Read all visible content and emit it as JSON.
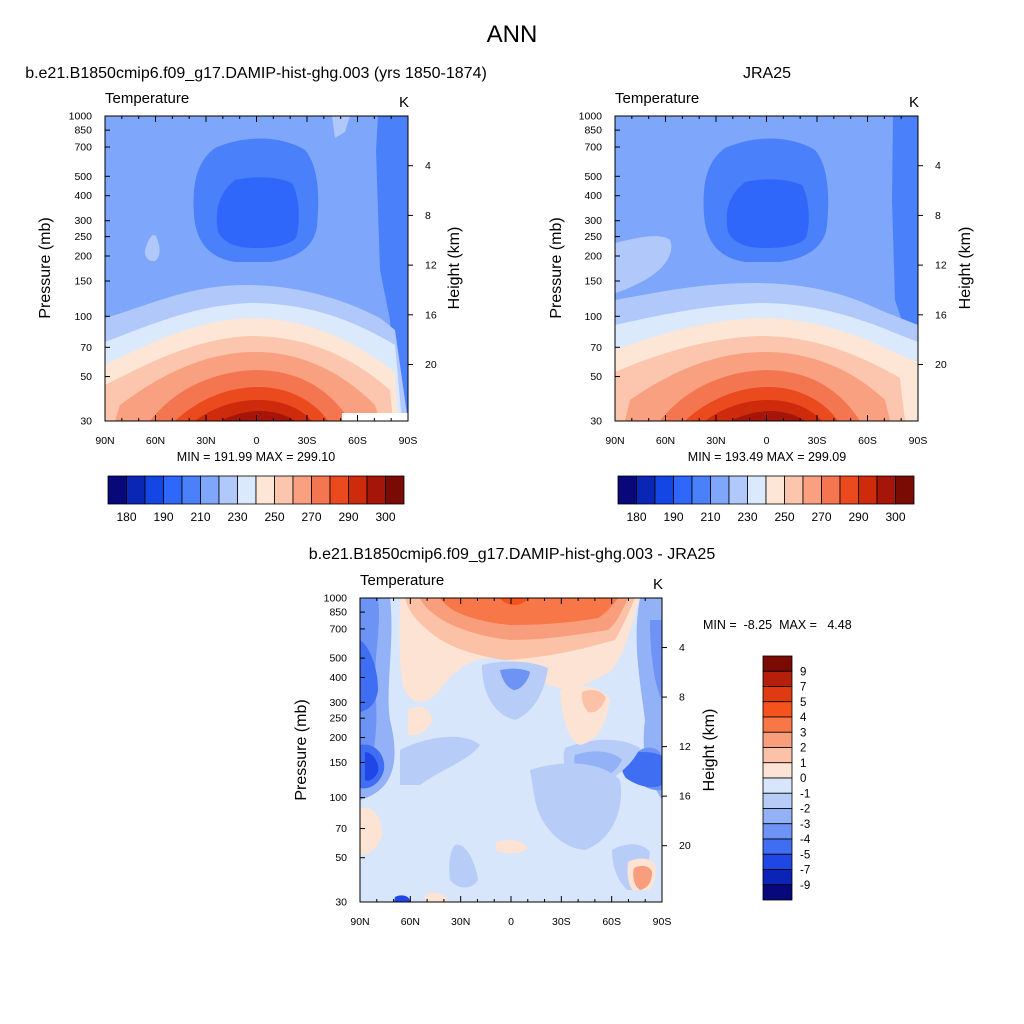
{
  "figure": {
    "title": "ANN"
  },
  "chart_data": [
    {
      "type": "heatmap",
      "panel": "model",
      "title": "b.e21.B1850cmip6.f09_g17.DAMIP-hist-ghg.003 (yrs 1850-1874)",
      "subtitle_left": "Temperature",
      "subtitle_right": "K",
      "xlabel": "",
      "ylabel": "Pressure (mb)",
      "ylabel_right": "Height (km)",
      "x_ticks": [
        "90N",
        "60N",
        "30N",
        "0",
        "30S",
        "60S",
        "90S"
      ],
      "y_ticks": [
        "30",
        "50",
        "70",
        "100",
        "150",
        "200",
        "250",
        "300",
        "400",
        "500",
        "700",
        "850",
        "1000"
      ],
      "height_ticks": [
        "20",
        "16",
        "12",
        "8",
        "4"
      ],
      "ylim": [
        1000,
        30
      ],
      "xlim": [
        90,
        -90
      ],
      "stats": "MIN = 191.99  MAX = 299.10",
      "min": 191.99,
      "max": 299.1,
      "colorbar": {
        "orientation": "horizontal",
        "labels": [
          "180",
          "190",
          "210",
          "230",
          "250",
          "270",
          "290",
          "300"
        ]
      }
    },
    {
      "type": "heatmap",
      "panel": "obs",
      "title": "JRA25",
      "subtitle_left": "Temperature",
      "subtitle_right": "K",
      "xlabel": "",
      "ylabel": "Pressure (mb)",
      "ylabel_right": "Height (km)",
      "x_ticks": [
        "90N",
        "60N",
        "30N",
        "0",
        "30S",
        "60S",
        "90S"
      ],
      "y_ticks": [
        "30",
        "50",
        "70",
        "100",
        "150",
        "200",
        "250",
        "300",
        "400",
        "500",
        "700",
        "850",
        "1000"
      ],
      "height_ticks": [
        "20",
        "16",
        "12",
        "8",
        "4"
      ],
      "ylim": [
        1000,
        30
      ],
      "xlim": [
        90,
        -90
      ],
      "stats": "MIN = 193.49  MAX = 299.09",
      "min": 193.49,
      "max": 299.09,
      "colorbar": {
        "orientation": "horizontal",
        "labels": [
          "180",
          "190",
          "210",
          "230",
          "250",
          "270",
          "290",
          "300"
        ]
      }
    },
    {
      "type": "heatmap",
      "panel": "difference",
      "title": "b.e21.B1850cmip6.f09_g17.DAMIP-hist-ghg.003 - JRA25",
      "subtitle_left": "Temperature",
      "subtitle_right": "K",
      "xlabel": "",
      "ylabel": "Pressure (mb)",
      "ylabel_right": "Height (km)",
      "x_ticks": [
        "90N",
        "60N",
        "30N",
        "0",
        "30S",
        "60S",
        "90S"
      ],
      "y_ticks": [
        "30",
        "50",
        "70",
        "100",
        "150",
        "200",
        "250",
        "300",
        "400",
        "500",
        "700",
        "850",
        "1000"
      ],
      "height_ticks": [
        "20",
        "16",
        "12",
        "8",
        "4"
      ],
      "ylim": [
        1000,
        30
      ],
      "xlim": [
        90,
        -90
      ],
      "stats": "MIN =  -8.25  MAX =   4.48",
      "min": -8.25,
      "max": 4.48,
      "colorbar": {
        "orientation": "vertical",
        "labels": [
          "9",
          "7",
          "5",
          "4",
          "3",
          "2",
          "1",
          "0",
          "-1",
          "-2",
          "-3",
          "-4",
          "-5",
          "-7",
          "-9"
        ]
      }
    }
  ],
  "colors": {
    "abs_palette": [
      "#08087a",
      "#0a26b4",
      "#1446e6",
      "#2f67fa",
      "#4a80fa",
      "#7ea6fa",
      "#b0c8fa",
      "#dbe9fc",
      "#fde6d6",
      "#fbc6ad",
      "#f8a07f",
      "#f37650",
      "#ea4a1e",
      "#ce2a0c",
      "#a5150a",
      "#7a0a04"
    ],
    "diff_palette": [
      "#7a0a04",
      "#b5200c",
      "#e03a12",
      "#f6521e",
      "#f87748",
      "#f99e7c",
      "#fbc2a8",
      "#fde3d3",
      "#d7e6fb",
      "#b7cdf8",
      "#92b1f6",
      "#6d93f5",
      "#3f6ef2",
      "#1f47e6",
      "#0a24b8",
      "#07087a"
    ]
  }
}
